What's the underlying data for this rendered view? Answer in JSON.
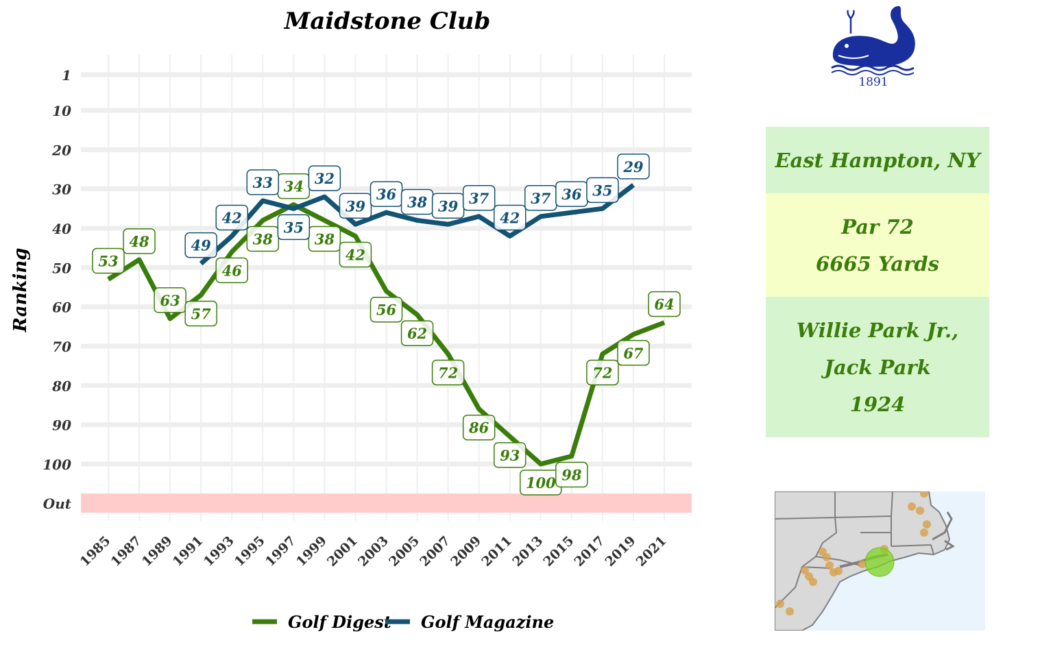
{
  "chart_data": {
    "type": "line",
    "title": "Maidstone Club",
    "ylabel": "Ranking",
    "xlabel": "",
    "y_reversed": true,
    "ylim": [
      1,
      100
    ],
    "y_ticks": [
      1,
      10,
      20,
      30,
      40,
      50,
      60,
      70,
      80,
      90,
      100
    ],
    "out_band_label": "Out",
    "x_ticks": [
      1985,
      1987,
      1989,
      1991,
      1993,
      1995,
      1997,
      1999,
      2001,
      2003,
      2005,
      2007,
      2009,
      2011,
      2013,
      2015,
      2017,
      2019,
      2021
    ],
    "grid": true,
    "legend_position": "bottom",
    "series": [
      {
        "name": "Golf Digest",
        "color": "#3a7d0a",
        "x": [
          1985,
          1987,
          1989,
          1991,
          1993,
          1995,
          1997,
          1999,
          2001,
          2003,
          2005,
          2007,
          2009,
          2011,
          2013,
          2015,
          2017,
          2019,
          2021
        ],
        "values": [
          53,
          48,
          63,
          57,
          46,
          38,
          34,
          38,
          42,
          56,
          62,
          72,
          86,
          93,
          100,
          98,
          72,
          67,
          64
        ],
        "label_side": [
          "above",
          "above",
          "above",
          "below",
          "below",
          "below",
          "above",
          "below",
          "below",
          "below",
          "below",
          "below",
          "below",
          "below",
          "below",
          "below",
          "below",
          "below",
          "above"
        ]
      },
      {
        "name": "Golf Magazine",
        "color": "#145373",
        "x": [
          1991,
          1993,
          1995,
          1997,
          1999,
          2001,
          2003,
          2005,
          2007,
          2009,
          2011,
          2013,
          2015,
          2017,
          2019
        ],
        "values": [
          49,
          42,
          33,
          35,
          32,
          39,
          36,
          38,
          39,
          37,
          42,
          37,
          36,
          35,
          29
        ],
        "label_side": [
          "above",
          "above",
          "above",
          "below",
          "above",
          "above",
          "above",
          "above",
          "above",
          "above",
          "above",
          "above",
          "above",
          "above",
          "above"
        ]
      }
    ]
  },
  "info_panel": {
    "location": "East Hampton, NY",
    "par": "Par 72",
    "yards": "6665 Yards",
    "architect_line1": "Willie Park Jr.,",
    "architect_line2": "Jack Park",
    "year": "1924",
    "location_bg": "#d6f5cf",
    "par_bg": "#f7ffc9",
    "architect_bg": "#d6f5cf"
  },
  "logo": {
    "icon": "whale-icon",
    "year": "1891",
    "color": "#1a2f9e"
  },
  "map": {
    "icon": "northeast-us-map",
    "highlight_color": "#7ed321",
    "marker_color": "#d4a04a"
  }
}
